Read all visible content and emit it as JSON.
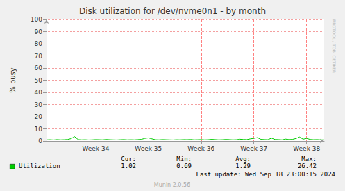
{
  "chart_data": {
    "type": "line",
    "title": "Disk utilization for /dev/nvme0n1 - by month",
    "y_label": "% busy",
    "categories": [
      null,
      null,
      null,
      null,
      null,
      null,
      null,
      null,
      null,
      null,
      null,
      null,
      null,
      null,
      "Week 34",
      null,
      null,
      null,
      null,
      null,
      null,
      null,
      null,
      null,
      null,
      null,
      null,
      null,
      null,
      "Week 35",
      null,
      null,
      null,
      null,
      null,
      null,
      null,
      null,
      null,
      null,
      null,
      null,
      null,
      null,
      "Week 36",
      null,
      null,
      null,
      null,
      null,
      null,
      null,
      null,
      null,
      null,
      null,
      null,
      null,
      null,
      "Week 37",
      null,
      null,
      null,
      null,
      null,
      null,
      null,
      null,
      null,
      null,
      null,
      null,
      null,
      null,
      "Week 38",
      null,
      null,
      null,
      null,
      null
    ],
    "series": [
      {
        "name": "Utilization",
        "color": "#00cc00",
        "values": [
          1.0,
          1.1,
          0.9,
          1.2,
          1.0,
          1.1,
          1.3,
          2.0,
          3.6,
          1.2,
          1.0,
          1.1,
          0.9,
          1.0,
          1.2,
          1.1,
          1.0,
          1.3,
          1.1,
          1.0,
          0.9,
          1.1,
          1.2,
          1.0,
          1.1,
          1.0,
          1.2,
          1.4,
          2.2,
          2.6,
          1.8,
          1.1,
          1.0,
          1.2,
          1.1,
          1.0,
          0.9,
          1.1,
          1.0,
          1.2,
          1.1,
          1.3,
          1.0,
          1.1,
          1.2,
          1.0,
          1.1,
          1.4,
          1.2,
          1.0,
          1.1,
          1.3,
          1.2,
          1.0,
          1.1,
          1.5,
          1.3,
          1.2,
          1.8,
          2.2,
          2.8,
          1.4,
          1.2,
          1.1,
          2.4,
          1.3,
          1.2,
          1.0,
          1.6,
          1.2,
          1.4,
          2.1,
          3.3,
          1.5,
          2.2,
          1.3,
          1.1,
          1.2,
          1.0,
          1.0
        ],
        "stats": [
          {
            "label": "Cur:",
            "value": 1.02
          },
          {
            "label": "Min:",
            "value": 0.69
          },
          {
            "label": "Avg:",
            "value": 1.29
          },
          {
            "label": "Max:",
            "value": 26.42
          }
        ]
      }
    ],
    "ylim": [
      0,
      100
    ],
    "yticks": [
      0,
      10,
      20,
      30,
      40,
      50,
      60,
      70,
      80,
      90,
      100
    ],
    "grid": true,
    "annotations": {
      "last_update": "Last update: Wed Sep 18 23:00:15 2024",
      "footer": "Munin 2.0.56",
      "watermark": "RRDTOOL / TOBI OETIKER"
    }
  }
}
